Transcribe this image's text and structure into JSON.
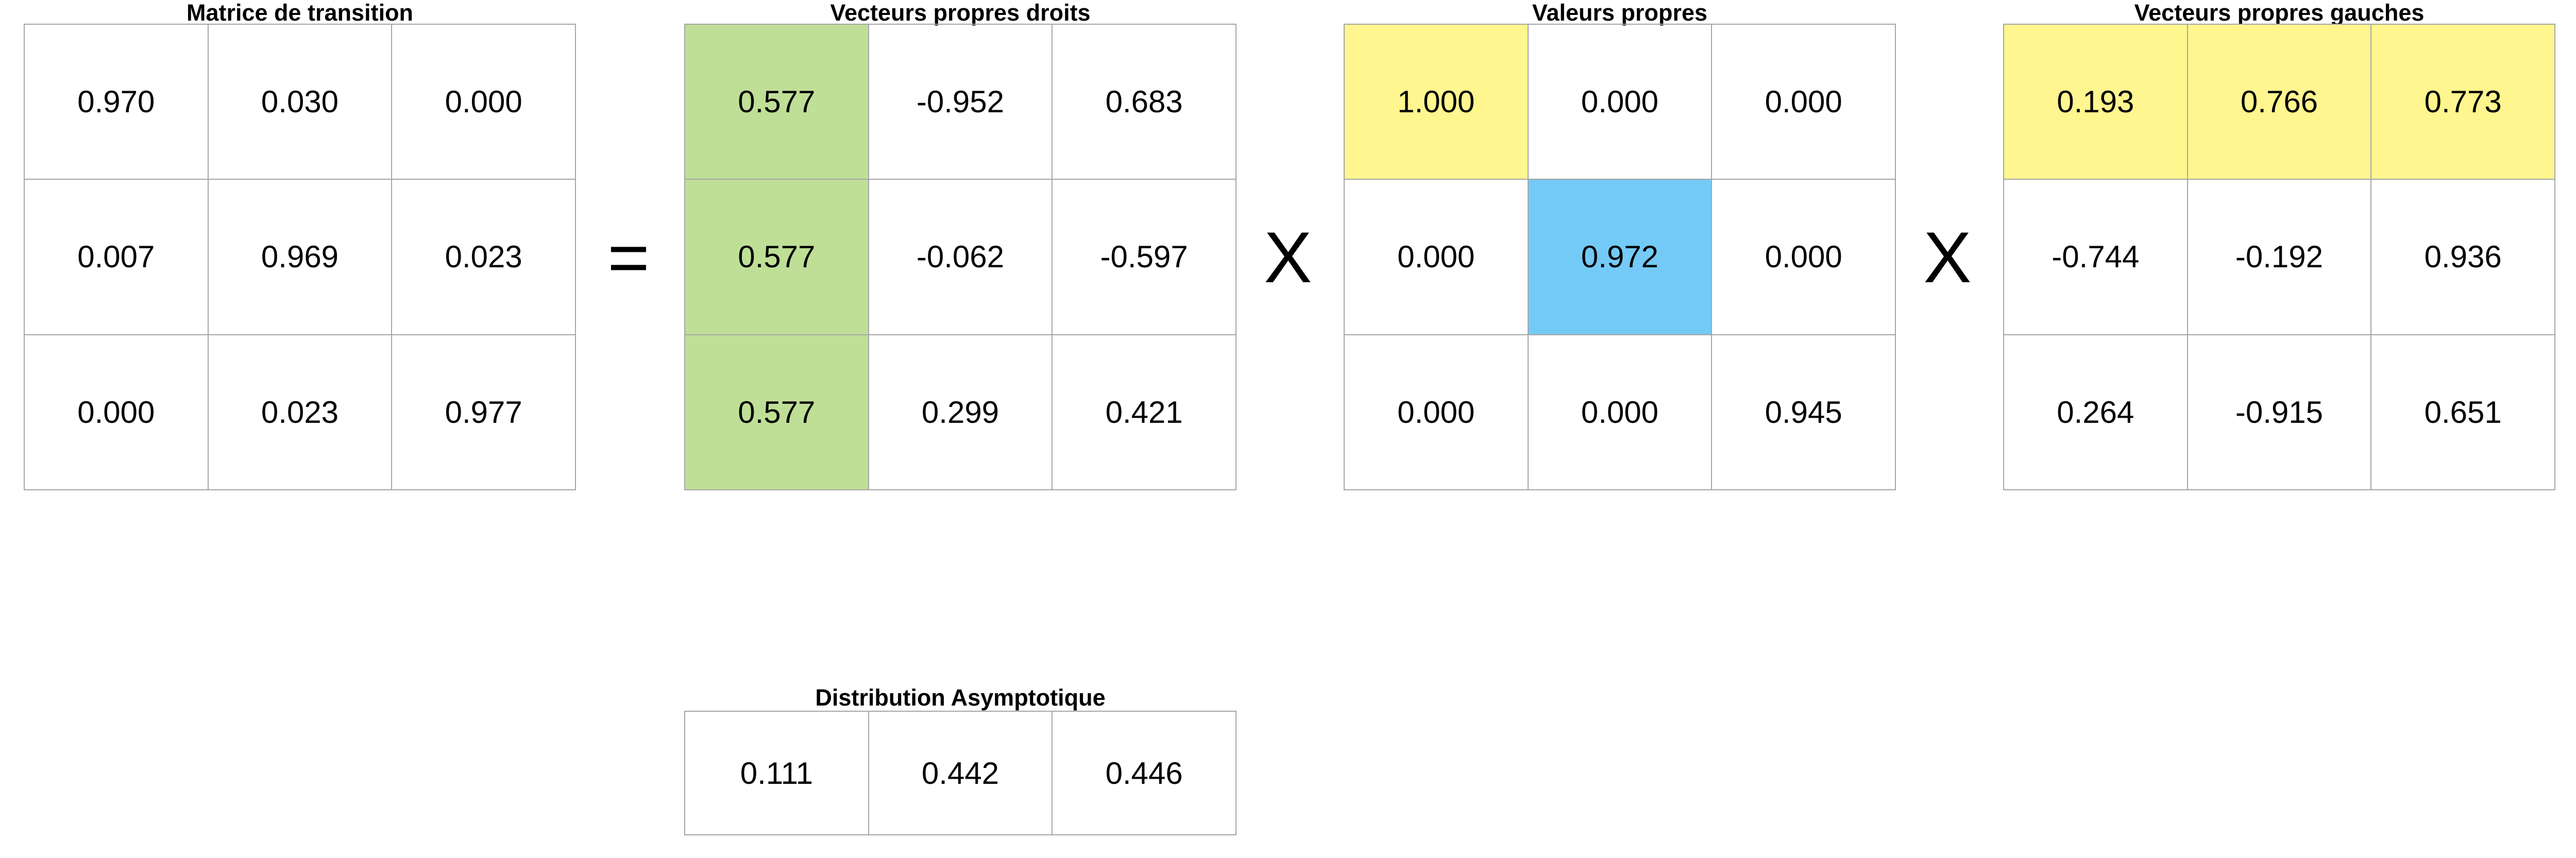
{
  "colors": {
    "green": "#bfdf97",
    "yellow": "#fff68f",
    "blue": "#74caf7",
    "border": "#a6a6a6"
  },
  "operators": {
    "equals": "=",
    "times1": "X",
    "times2": "X"
  },
  "matrices": {
    "transition": {
      "title": "Matrice de transition",
      "rows": [
        [
          "0.970",
          "0.030",
          "0.000"
        ],
        [
          "0.007",
          "0.969",
          "0.023"
        ],
        [
          "0.000",
          "0.023",
          "0.977"
        ]
      ]
    },
    "right_eigvecs": {
      "title": "Vecteurs propres droits",
      "rows": [
        [
          "0.577",
          "-0.952",
          "0.683"
        ],
        [
          "0.577",
          "-0.062",
          "-0.597"
        ],
        [
          "0.577",
          "0.299",
          "0.421"
        ]
      ]
    },
    "eigenvalues": {
      "title": "Valeurs propres",
      "rows": [
        [
          "1.000",
          "0.000",
          "0.000"
        ],
        [
          "0.000",
          "0.972",
          "0.000"
        ],
        [
          "0.000",
          "0.000",
          "0.945"
        ]
      ]
    },
    "left_eigvecs": {
      "title": "Vecteurs propres gauches",
      "rows": [
        [
          "0.193",
          "0.766",
          "0.773"
        ],
        [
          "-0.744",
          "-0.192",
          "0.936"
        ],
        [
          "0.264",
          "-0.915",
          "0.651"
        ]
      ]
    },
    "asymptotic": {
      "title": "Distribution Asymptotique",
      "rows": [
        [
          "0.111",
          "0.442",
          "0.446"
        ]
      ]
    }
  }
}
